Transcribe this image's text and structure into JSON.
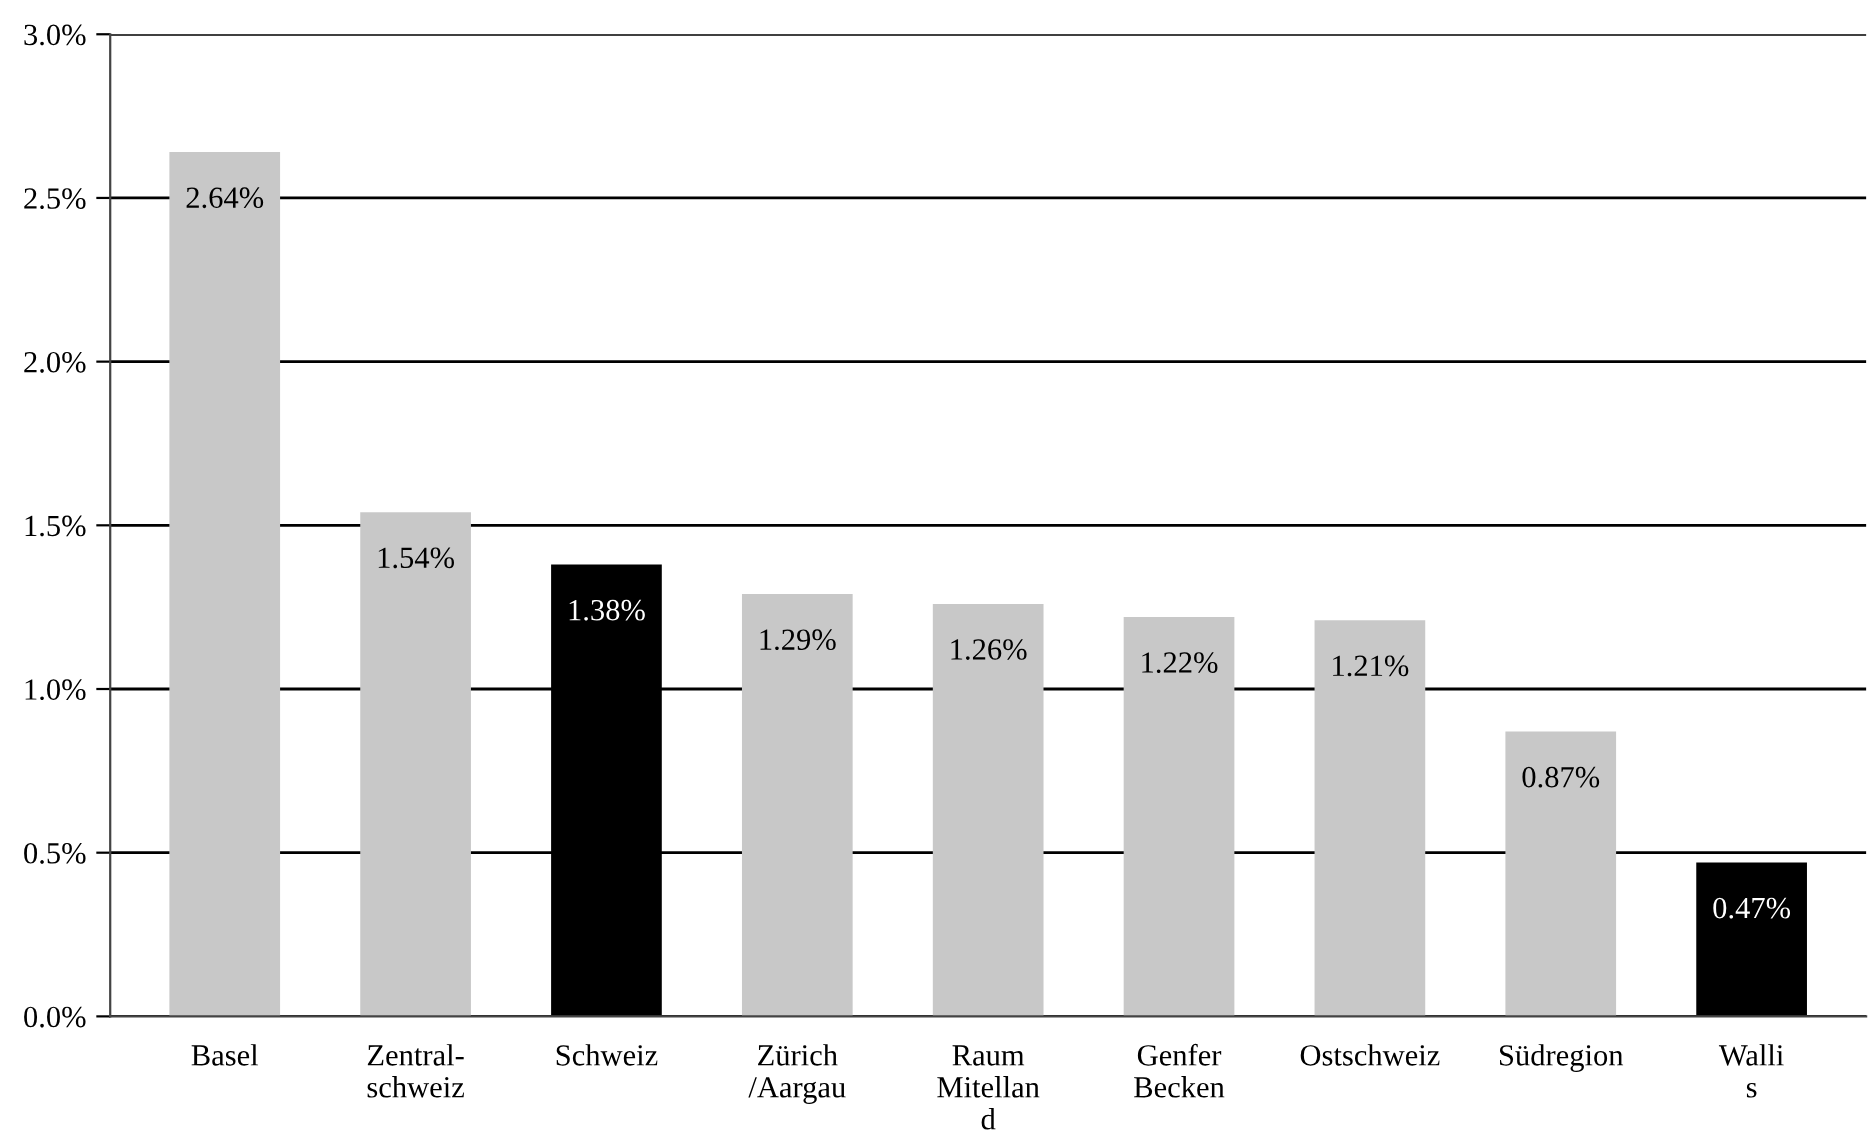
{
  "chart_data": {
    "type": "bar",
    "categories": [
      "Basel",
      "Zentral-\nschweiz",
      "Schweiz",
      "Zürich\n/Aargau",
      "Raum\nMitellan\nd",
      "Genfer\nBecken",
      "Ostschweiz",
      "Südregion",
      "Walli\ns"
    ],
    "values": [
      2.64,
      1.54,
      1.38,
      1.29,
      1.26,
      1.22,
      1.21,
      0.87,
      0.47
    ],
    "colors": [
      "#c8c8c8",
      "#c8c8c8",
      "#000000",
      "#c8c8c8",
      "#c8c8c8",
      "#c8c8c8",
      "#c8c8c8",
      "#c8c8c8",
      "#000000"
    ],
    "value_labels": [
      "2.64%",
      "1.54%",
      "1.38%",
      "1.29%",
      "1.26%",
      "1.22%",
      "1.21%",
      "0.87%",
      "0.47%"
    ],
    "ylim": [
      0,
      3.0
    ],
    "yticks": [
      {
        "value": 0,
        "label": "0.0%"
      },
      {
        "value": 0.5,
        "label": "0.5%"
      },
      {
        "value": 1.0,
        "label": "1.0%"
      },
      {
        "value": 1.5,
        "label": "1.5%"
      },
      {
        "value": 2.0,
        "label": "2.0%"
      },
      {
        "value": 2.5,
        "label": "2.5%"
      },
      {
        "value": 3.0,
        "label": "3.0%"
      }
    ],
    "grid": "y"
  }
}
